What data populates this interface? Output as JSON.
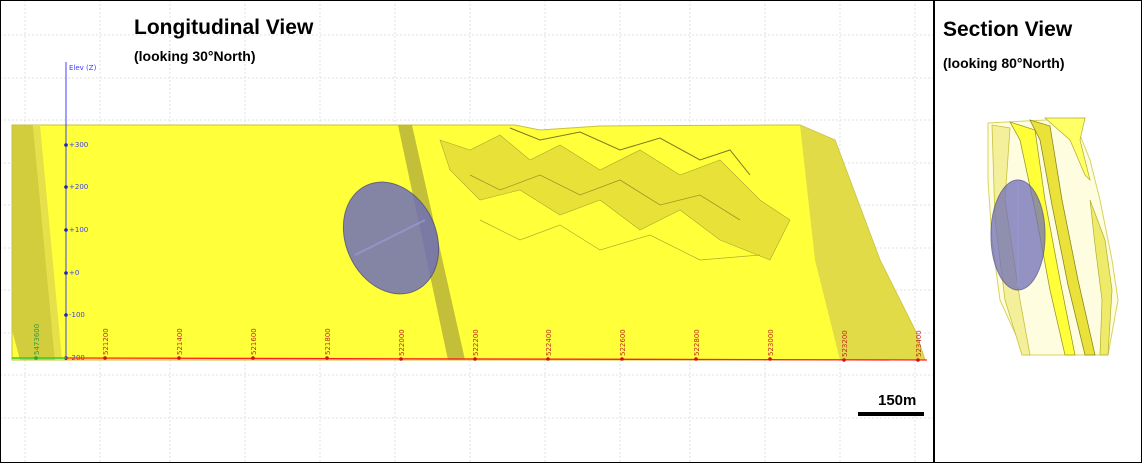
{
  "longitudinal": {
    "title": "Longitudinal View",
    "subtitle": "(looking 30°North)",
    "axis_label": "Elev (Z)",
    "elevation_ticks": [
      "+300",
      "+200",
      "+100",
      "+0",
      "-100",
      "-200"
    ],
    "easting_ticks": [
      "521200",
      "521400",
      "521600",
      "521800",
      "522000",
      "522200",
      "522400",
      "522600",
      "522800",
      "523000",
      "523200",
      "523400"
    ],
    "northing_label": "5473600",
    "scale_bar_label": "150m"
  },
  "section": {
    "title": "Section View",
    "subtitle": "(looking 80°North)"
  },
  "colors": {
    "orebody_yellow": "#ffff33",
    "orebody_shade": "#c8c23a",
    "ellipsoid_fill": "#6f6fb5",
    "elev_axis": "#4040ff",
    "easting_axis": "#ff2020",
    "northing_axis": "#33cc33",
    "grid": "#e0e0e0"
  }
}
